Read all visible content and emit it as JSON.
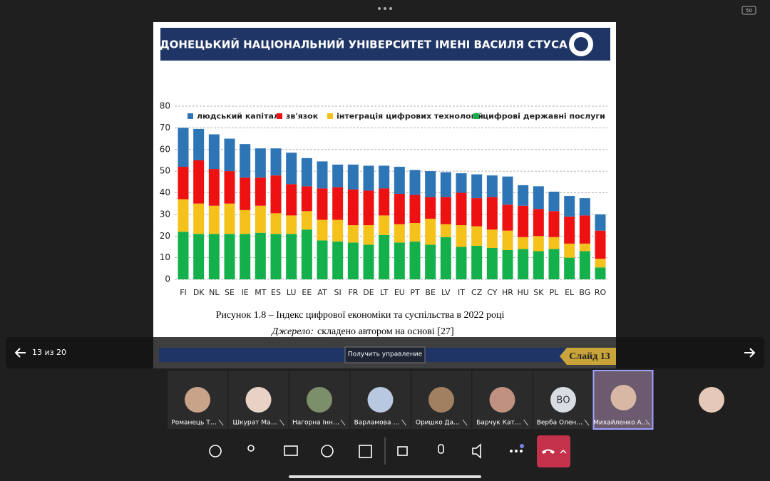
{
  "top_bar": {
    "badge": "50"
  },
  "slide": {
    "title": "ДОНЕЦЬКИЙ НАЦІОНАЛЬНИЙ УНІВЕРСИТЕТ ІМЕНІ ВАСИЛЯ СТУСА",
    "chart_data": {
      "type": "stacked_bar",
      "legend": "top",
      "categories": [
        "FI",
        "DK",
        "NL",
        "SE",
        "IE",
        "MT",
        "ES",
        "LU",
        "EE",
        "AT",
        "SI",
        "FR",
        "DE",
        "LT",
        "EU",
        "PT",
        "BE",
        "LV",
        "IT",
        "CZ",
        "CY",
        "HR",
        "HU",
        "SK",
        "PL",
        "EL",
        "BG",
        "RO"
      ],
      "series": [
        {
          "name": "людський капітал",
          "color": "#2e75b6",
          "values": [
            18,
            14.5,
            16,
            15,
            15.5,
            13.5,
            12.5,
            14.5,
            13,
            12.5,
            10.5,
            11.5,
            11.5,
            10.5,
            12.5,
            11.5,
            12,
            11.5,
            9,
            11,
            10,
            13,
            9.5,
            10.5,
            9,
            9.5,
            8,
            7.5
          ]
        },
        {
          "name": "зв'язок",
          "color": "#ee1111",
          "values": [
            15,
            20,
            17,
            15,
            15,
            13,
            17.5,
            14.5,
            11.5,
            14.5,
            15,
            16.5,
            16,
            12.5,
            14,
            13,
            10,
            12.5,
            15,
            13,
            15,
            12,
            14.5,
            12.5,
            12,
            12.5,
            13,
            13
          ]
        },
        {
          "name": "інтеграція цифрових технологій",
          "color": "#f5c21b",
          "values": [
            15,
            14,
            13,
            14,
            11,
            12.5,
            9.5,
            8.5,
            8.5,
            9.5,
            10,
            8,
            9,
            9,
            8.5,
            8.5,
            12,
            6,
            10,
            9,
            8.5,
            9,
            5.5,
            7,
            5.5,
            6.5,
            3.5,
            4
          ]
        },
        {
          "name": "цифрові державні послуги",
          "color": "#13b04b",
          "values": [
            22,
            21,
            21,
            21,
            21,
            21.5,
            21,
            21,
            23,
            18,
            17.5,
            17,
            16,
            20.5,
            17,
            17.5,
            16,
            19.5,
            15,
            15.5,
            14.5,
            13.5,
            14,
            13,
            14,
            10,
            13,
            5.5
          ]
        }
      ],
      "ylim": [
        0,
        80
      ],
      "yticks": [
        0,
        10,
        20,
        30,
        40,
        50,
        60,
        70,
        80
      ],
      "grid": true
    },
    "caption": "Рисунок 1.8 – Індекс цифрової економіки та суспільства в 2022 році",
    "source_label": "Джерело:",
    "source_text": "складено автором на основі [27]",
    "slide_label": "Слайд 13"
  },
  "overlay": {
    "page_counter": "13 из 20",
    "control_button": "Получить управление"
  },
  "participants": [
    {
      "name": "Романець Т…"
    },
    {
      "name": "Шкурат Ма…"
    },
    {
      "name": "Нагорна Інн…"
    },
    {
      "name": "Варламова …"
    },
    {
      "name": "Оришко Да…"
    },
    {
      "name": "Барчук Кат…"
    },
    {
      "name": "Верба Олен…",
      "initials": "ВО"
    },
    {
      "name": "Михайленко А…"
    }
  ]
}
